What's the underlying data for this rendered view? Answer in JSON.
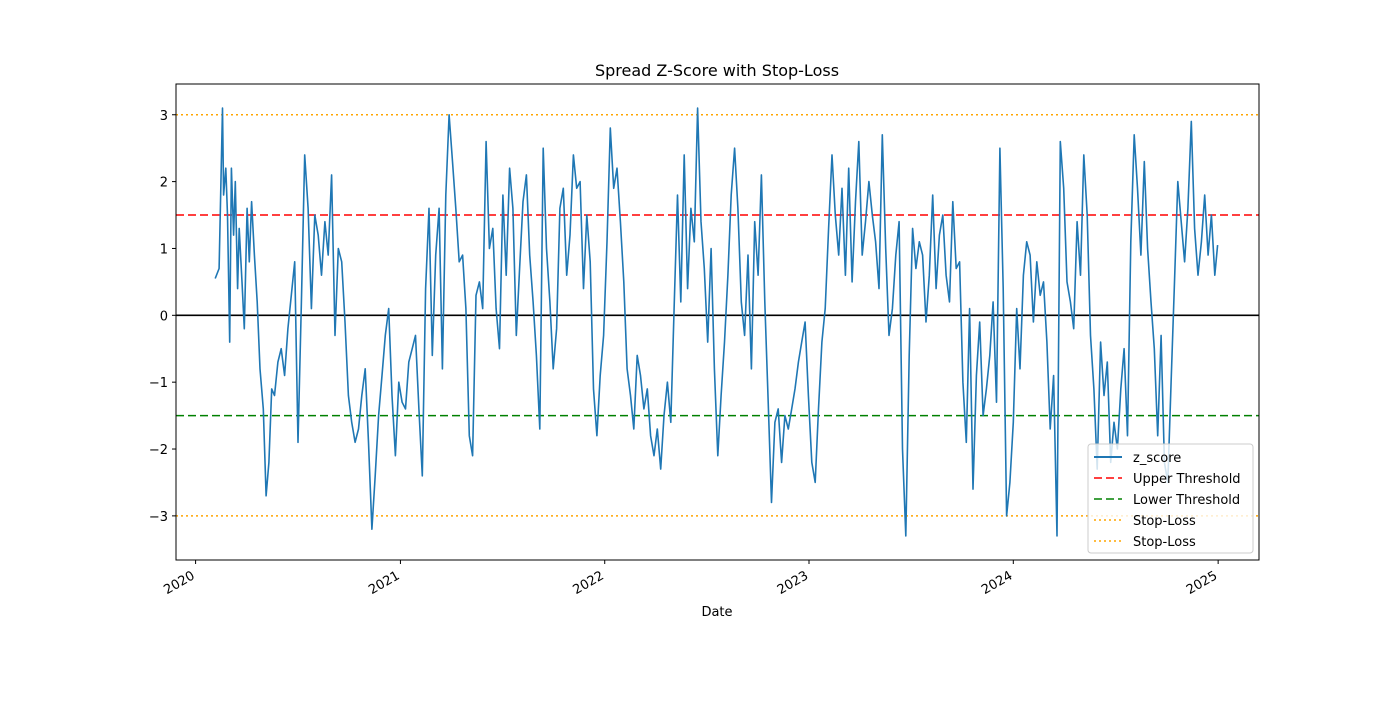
{
  "chart_data": {
    "type": "line",
    "title": "Spread Z-Score with Stop-Loss",
    "xlabel": "Date",
    "ylabel": "",
    "xlim": [
      "2019-11-27",
      "2025-03-15"
    ],
    "ylim": [
      -3.66,
      3.46
    ],
    "x_ticks": [
      "2020",
      "2021",
      "2022",
      "2023",
      "2024",
      "2025"
    ],
    "y_ticks": [
      "3",
      "2",
      "1",
      "0",
      "−1",
      "−2",
      "−3"
    ],
    "grid": false,
    "legend_position": "lower-right",
    "legend": [
      "z_score",
      "Upper Threshold",
      "Lower Threshold",
      "Stop-Loss",
      "Stop-Loss"
    ],
    "colors": {
      "z_score": "#1f77b4",
      "upper": "#ff0000",
      "lower": "#008000",
      "stop_loss": "#ffa500",
      "zero": "#000000"
    },
    "reference_lines": [
      {
        "name": "Upper Threshold",
        "y": 1.5,
        "style": "dashed",
        "color": "#ff0000"
      },
      {
        "name": "Lower Threshold",
        "y": -1.5,
        "style": "dashed",
        "color": "#008000"
      },
      {
        "name": "Stop-Loss",
        "y": 3.0,
        "style": "dotted",
        "color": "#ffa500"
      },
      {
        "name": "Stop-Loss",
        "y": -3.0,
        "style": "dotted",
        "color": "#ffa500"
      },
      {
        "name": "zero",
        "y": 0.0,
        "style": "solid",
        "color": "#000000"
      }
    ],
    "series": [
      {
        "name": "z_score",
        "x": [
          "2020-02-05",
          "2020-02-12",
          "2020-02-18",
          "2020-02-20",
          "2020-02-24",
          "2020-02-27",
          "2020-03-02",
          "2020-03-05",
          "2020-03-09",
          "2020-03-12",
          "2020-03-16",
          "2020-03-19",
          "2020-03-24",
          "2020-03-28",
          "2020-04-02",
          "2020-04-06",
          "2020-04-10",
          "2020-04-15",
          "2020-04-20",
          "2020-04-25",
          "2020-05-01",
          "2020-05-06",
          "2020-05-11",
          "2020-05-16",
          "2020-05-21",
          "2020-05-27",
          "2020-06-02",
          "2020-06-08",
          "2020-06-14",
          "2020-06-20",
          "2020-06-26",
          "2020-07-02",
          "2020-07-08",
          "2020-07-14",
          "2020-07-20",
          "2020-07-26",
          "2020-08-01",
          "2020-08-07",
          "2020-08-13",
          "2020-08-19",
          "2020-08-25",
          "2020-08-31",
          "2020-09-06",
          "2020-09-12",
          "2020-09-18",
          "2020-09-24",
          "2020-09-30",
          "2020-10-06",
          "2020-10-12",
          "2020-10-18",
          "2020-10-24",
          "2020-10-30",
          "2020-11-05",
          "2020-11-11",
          "2020-11-17",
          "2020-11-23",
          "2020-11-29",
          "2020-12-05",
          "2020-12-11",
          "2020-12-17",
          "2020-12-23",
          "2020-12-29",
          "2021-01-04",
          "2021-01-10",
          "2021-01-16",
          "2021-01-22",
          "2021-01-28",
          "2021-02-03",
          "2021-02-09",
          "2021-02-15",
          "2021-02-21",
          "2021-02-27",
          "2021-03-05",
          "2021-03-11",
          "2021-03-17",
          "2021-03-23",
          "2021-03-29",
          "2021-04-04",
          "2021-04-10",
          "2021-04-16",
          "2021-04-22",
          "2021-04-28",
          "2021-05-04",
          "2021-05-10",
          "2021-05-16",
          "2021-05-22",
          "2021-05-28",
          "2021-06-03",
          "2021-06-09",
          "2021-06-15",
          "2021-06-21",
          "2021-06-27",
          "2021-07-03",
          "2021-07-09",
          "2021-07-15",
          "2021-07-21",
          "2021-07-27",
          "2021-08-02",
          "2021-08-08",
          "2021-08-14",
          "2021-08-20",
          "2021-08-26",
          "2021-09-01",
          "2021-09-07",
          "2021-09-13",
          "2021-09-19",
          "2021-09-25",
          "2021-10-01",
          "2021-10-07",
          "2021-10-13",
          "2021-10-19",
          "2021-10-25",
          "2021-10-31",
          "2021-11-06",
          "2021-11-12",
          "2021-11-18",
          "2021-11-24",
          "2021-11-30",
          "2021-12-06",
          "2021-12-12",
          "2021-12-18",
          "2021-12-24",
          "2021-12-30",
          "2022-01-05",
          "2022-01-11",
          "2022-01-17",
          "2022-01-23",
          "2022-01-29",
          "2022-02-04",
          "2022-02-10",
          "2022-02-16",
          "2022-02-22",
          "2022-02-28",
          "2022-03-06",
          "2022-03-12",
          "2022-03-18",
          "2022-03-24",
          "2022-03-30",
          "2022-04-05",
          "2022-04-11",
          "2022-04-17",
          "2022-04-23",
          "2022-04-29",
          "2022-05-05",
          "2022-05-11",
          "2022-05-17",
          "2022-05-23",
          "2022-05-29",
          "2022-06-04",
          "2022-06-10",
          "2022-06-16",
          "2022-06-22",
          "2022-06-28",
          "2022-07-04",
          "2022-07-10",
          "2022-07-16",
          "2022-07-22",
          "2022-07-28",
          "2022-08-03",
          "2022-08-09",
          "2022-08-15",
          "2022-08-21",
          "2022-08-27",
          "2022-09-02",
          "2022-09-08",
          "2022-09-14",
          "2022-09-20",
          "2022-09-26",
          "2022-10-02",
          "2022-10-08",
          "2022-10-14",
          "2022-10-20",
          "2022-10-26",
          "2022-11-01",
          "2022-11-07",
          "2022-11-13",
          "2022-11-19",
          "2022-11-25",
          "2022-12-01",
          "2022-12-07",
          "2022-12-13",
          "2022-12-19",
          "2022-12-25",
          "2022-12-31",
          "2023-01-06",
          "2023-01-12",
          "2023-01-18",
          "2023-01-24",
          "2023-01-30",
          "2023-02-05",
          "2023-02-11",
          "2023-02-17",
          "2023-02-23",
          "2023-03-01",
          "2023-03-07",
          "2023-03-13",
          "2023-03-19",
          "2023-03-25",
          "2023-03-31",
          "2023-04-06",
          "2023-04-12",
          "2023-04-18",
          "2023-04-24",
          "2023-04-30",
          "2023-05-06",
          "2023-05-12",
          "2023-05-18",
          "2023-05-24",
          "2023-05-30",
          "2023-06-05",
          "2023-06-11",
          "2023-06-17",
          "2023-06-23",
          "2023-06-29",
          "2023-07-05",
          "2023-07-11",
          "2023-07-17",
          "2023-07-23",
          "2023-07-29",
          "2023-08-04",
          "2023-08-10",
          "2023-08-16",
          "2023-08-22",
          "2023-08-28",
          "2023-09-03",
          "2023-09-09",
          "2023-09-15",
          "2023-09-21",
          "2023-09-27",
          "2023-10-03",
          "2023-10-09",
          "2023-10-15",
          "2023-10-21",
          "2023-10-27",
          "2023-11-02",
          "2023-11-08",
          "2023-11-14",
          "2023-11-20",
          "2023-11-26",
          "2023-12-02",
          "2023-12-08",
          "2023-12-14",
          "2023-12-20",
          "2023-12-26",
          "2024-01-01",
          "2024-01-07",
          "2024-01-13",
          "2024-01-19",
          "2024-01-25",
          "2024-01-31",
          "2024-02-06",
          "2024-02-12",
          "2024-02-18",
          "2024-02-24",
          "2024-03-01",
          "2024-03-07",
          "2024-03-13",
          "2024-03-19",
          "2024-03-25",
          "2024-03-31",
          "2024-04-06",
          "2024-04-12",
          "2024-04-18",
          "2024-04-24",
          "2024-04-30",
          "2024-05-06",
          "2024-05-12",
          "2024-05-18",
          "2024-05-24",
          "2024-05-30",
          "2024-06-05",
          "2024-06-11",
          "2024-06-17",
          "2024-06-23",
          "2024-06-29",
          "2024-07-05",
          "2024-07-11",
          "2024-07-17",
          "2024-07-23",
          "2024-07-29",
          "2024-08-04",
          "2024-08-10",
          "2024-08-16",
          "2024-08-22",
          "2024-08-28",
          "2024-09-03",
          "2024-09-09",
          "2024-09-15",
          "2024-09-21",
          "2024-09-27",
          "2024-10-03",
          "2024-10-09",
          "2024-10-15",
          "2024-10-21",
          "2024-10-27",
          "2024-11-02",
          "2024-11-08",
          "2024-11-14",
          "2024-11-20",
          "2024-11-26",
          "2024-12-02",
          "2024-12-08",
          "2024-12-14",
          "2024-12-20",
          "2024-12-26",
          "2024-12-31"
        ],
        "y": [
          0.55,
          0.7,
          3.1,
          1.8,
          2.2,
          1.5,
          -0.4,
          2.2,
          1.2,
          2.0,
          0.4,
          1.3,
          0.5,
          -0.2,
          1.6,
          0.8,
          1.7,
          0.9,
          0.2,
          -0.8,
          -1.4,
          -2.7,
          -2.2,
          -1.1,
          -1.2,
          -0.7,
          -0.5,
          -0.9,
          -0.2,
          0.3,
          0.8,
          -1.9,
          0.2,
          2.4,
          1.6,
          0.1,
          1.5,
          1.2,
          0.6,
          1.4,
          0.9,
          2.1,
          -0.3,
          1.0,
          0.8,
          -0.1,
          -1.2,
          -1.6,
          -1.9,
          -1.7,
          -1.2,
          -0.8,
          -1.9,
          -3.2,
          -2.4,
          -1.5,
          -0.9,
          -0.3,
          0.1,
          -1.2,
          -2.1,
          -1.0,
          -1.3,
          -1.4,
          -0.7,
          -0.5,
          -0.3,
          -1.4,
          -2.4,
          0.4,
          1.6,
          -0.6,
          0.9,
          1.6,
          -0.8,
          1.8,
          3.0,
          2.3,
          1.6,
          0.8,
          0.9,
          0.1,
          -1.8,
          -2.1,
          0.3,
          0.5,
          0.1,
          2.6,
          1.0,
          1.3,
          0.1,
          -0.5,
          1.8,
          0.6,
          2.2,
          1.6,
          -0.3,
          0.7,
          1.7,
          2.1,
          0.9,
          0.2,
          -0.6,
          -1.7,
          2.5,
          1.0,
          0.2,
          -0.8,
          -0.2,
          1.6,
          1.9,
          0.6,
          1.2,
          2.4,
          1.9,
          2.0,
          0.4,
          1.5,
          0.8,
          -1.1,
          -1.8,
          -0.9,
          -0.3,
          1.1,
          2.8,
          1.9,
          2.2,
          1.4,
          0.5,
          -0.8,
          -1.2,
          -1.7,
          -0.6,
          -0.9,
          -1.4,
          -1.1,
          -1.8,
          -2.1,
          -1.7,
          -2.3,
          -1.5,
          -1.0,
          -1.6,
          0.1,
          1.8,
          0.2,
          2.4,
          0.4,
          1.6,
          1.1,
          3.1,
          1.4,
          0.7,
          -0.4,
          1.0,
          -0.8,
          -2.1,
          -1.2,
          -0.4,
          0.6,
          1.8,
          2.5,
          1.6,
          0.2,
          -0.3,
          0.9,
          -0.8,
          1.4,
          0.6,
          2.1,
          0.2,
          -1.3,
          -2.8,
          -1.6,
          -1.4,
          -2.2,
          -1.5,
          -1.7,
          -1.4,
          -1.1,
          -0.7,
          -0.4,
          -0.1,
          -1.2,
          -2.2,
          -2.5,
          -1.4,
          -0.4,
          0.1,
          1.3,
          2.4,
          1.5,
          0.9,
          1.9,
          0.6,
          2.2,
          0.5,
          1.7,
          2.6,
          0.9,
          1.4,
          2.0,
          1.5,
          1.1,
          0.4,
          2.7,
          1.0,
          -0.3,
          0.1,
          0.9,
          1.4,
          -2.0,
          -3.3,
          -0.6,
          1.3,
          0.7,
          1.1,
          0.9,
          -0.1,
          0.6,
          1.8,
          0.4,
          1.2,
          1.5,
          0.6,
          0.2,
          1.7,
          0.7,
          0.8,
          -1.0,
          -1.9,
          0.1,
          -2.6,
          -0.9,
          -0.1,
          -1.5,
          -1.1,
          -0.6,
          0.2,
          -1.3,
          2.5,
          0.4,
          -3.0,
          -2.5,
          -1.6,
          0.1,
          -0.8,
          0.6,
          1.1,
          0.9,
          -0.1,
          0.8,
          0.3,
          0.5,
          -0.4,
          -1.7,
          -0.9,
          -3.3,
          2.6,
          1.9,
          0.5,
          0.2,
          -0.2,
          1.4,
          0.6,
          2.4,
          1.5,
          -0.3,
          -1.1,
          -2.3,
          -0.4,
          -1.2,
          -0.7,
          -2.2,
          -1.6,
          -2.0,
          -1.1,
          -0.5,
          -1.8,
          1.1,
          2.7,
          1.9,
          0.9,
          2.3,
          1.0,
          0.2,
          -0.5,
          -1.8,
          -0.3,
          -2.2,
          -2.5,
          -1.0,
          0.5,
          2.0,
          1.4,
          0.8,
          1.6,
          2.9,
          1.3,
          0.6,
          1.1,
          1.8,
          0.9,
          1.5,
          0.6,
          1.05
        ]
      }
    ]
  }
}
